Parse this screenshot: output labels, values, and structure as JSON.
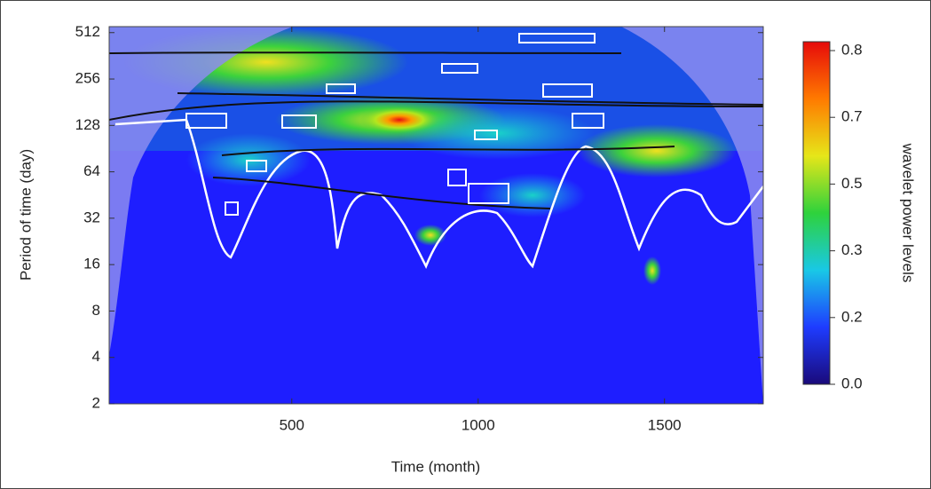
{
  "chart_data": {
    "type": "wavelet",
    "x_label": "Time (month)",
    "y_label": "Period of time (day)",
    "xlim": [
      10,
      1765
    ],
    "xticks": [
      500,
      1000,
      1500
    ],
    "ylim": [
      2,
      560
    ],
    "yticks": [
      2,
      4,
      8,
      16,
      32,
      64,
      128,
      256,
      512
    ],
    "y_scale": "log2",
    "colorbar": {
      "label": "wavelet power levels",
      "levels": [
        {
          "value": 0,
          "label": "0.0"
        },
        0.2,
        0.3,
        0.5,
        0.7,
        0.8
      ],
      "colors": [
        "#1a0a7a",
        "#1e3cff",
        "#19c8e6",
        "#2ed23c",
        "#e6e619",
        "#ff7a00",
        "#e60a0a"
      ]
    }
  }
}
